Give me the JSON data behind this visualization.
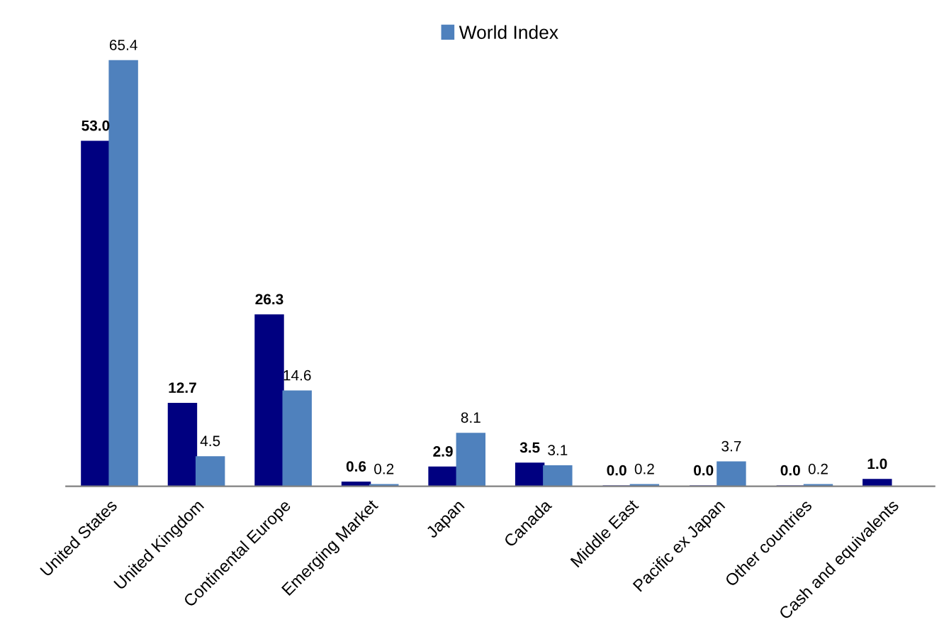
{
  "chart_data": {
    "type": "bar",
    "categories": [
      "United States",
      "United Kingdom",
      "Continental Europe",
      "Emerging Market",
      "Japan",
      "Canada",
      "Middle East",
      "Pacific ex Japan",
      "Other countries",
      "Cash and equivalents"
    ],
    "series": [
      {
        "color": "#000080",
        "values": [
          53.0,
          12.7,
          26.3,
          0.6,
          2.9,
          3.5,
          0.0,
          0.0,
          0.0,
          1.0
        ],
        "value_labels": [
          "53.0",
          "12.7",
          "26.3",
          "0.6",
          "2.9",
          "3.5",
          "0.0",
          "0.0",
          "0.0",
          "1.0"
        ]
      },
      {
        "name": "World Index",
        "color": "#4f81bd",
        "values": [
          65.4,
          4.5,
          14.6,
          0.2,
          8.1,
          3.1,
          0.2,
          3.7,
          0.2,
          null
        ],
        "value_labels": [
          "65.4",
          "4.5",
          "14.6",
          "0.2",
          "8.1",
          "3.1",
          "0.2",
          "3.7",
          "0.2",
          null
        ]
      }
    ],
    "legend": "top",
    "grid": false
  }
}
